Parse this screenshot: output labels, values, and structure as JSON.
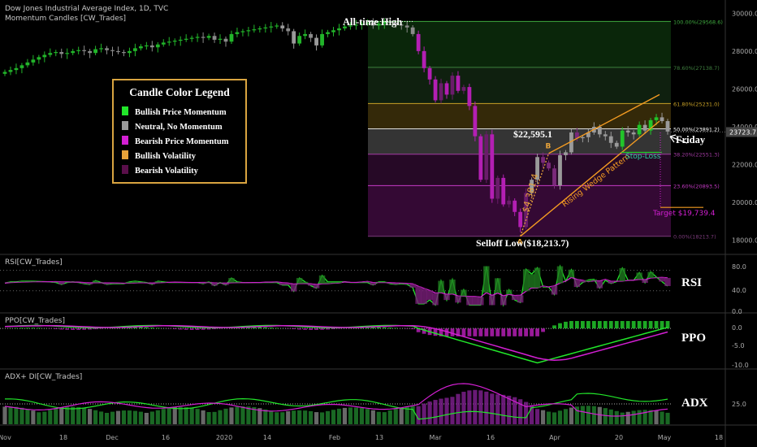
{
  "header": {
    "title": "Dow Jones Industrial Average Index, 1D, TVC",
    "indicator": "Momentum Candles [CW_Trades]"
  },
  "legend": {
    "title": "Candle Color Legend",
    "items": [
      {
        "label": "Bullish Price Momentum",
        "color": "#22e52a"
      },
      {
        "label": "Neutral, No Momentum",
        "color": "#9a9a9a"
      },
      {
        "label": "Bearish Price Momentum",
        "color": "#d31fd3"
      },
      {
        "label": "Bullish Volatility",
        "color": "#e8a33a"
      },
      {
        "label": "Bearish Volatility",
        "color": "#5a0f4a"
      }
    ]
  },
  "annotations": {
    "ath": "All-time High",
    "selloff": "Selloff Low($18,213.7)",
    "bounce_price": "$22,595.1",
    "point_a": "A",
    "point_b": "B",
    "move": "$4,381.4",
    "wedge": "Rising Wedge Pattern",
    "stop": "Stop-Loss",
    "target": "Target $19,739.4",
    "friday": "Friday"
  },
  "panels": {
    "rsi": {
      "header": "RSI[CW_Trades]",
      "label": "RSI",
      "ticks": [
        "80.0",
        "40.0",
        "0.0"
      ]
    },
    "ppo": {
      "header": "PPO[CW_Trades]",
      "label": "PPO",
      "ticks": [
        "0.0",
        "-5.0",
        "-10.0"
      ]
    },
    "adx": {
      "header": "ADX+ DI[CW_Trades]",
      "label": "ADX",
      "ticks": [
        "25.0"
      ]
    }
  },
  "chart_data": {
    "type": "candlestick",
    "title": "Dow Jones Industrial Average Index, 1D, TVC",
    "price_axis": {
      "ticks": [
        18000,
        20000,
        22000,
        24000,
        26000,
        28000,
        30000
      ],
      "range": [
        17300,
        30700
      ]
    },
    "current_price": "23723.7",
    "time_axis": {
      "labels": [
        "Nov",
        "18",
        "Dec",
        "16",
        "2020",
        "14",
        "Feb",
        "13",
        "Mar",
        "16",
        "Apr",
        "20",
        "May",
        "18"
      ]
    },
    "fibonacci": [
      {
        "label": "100.00%(29568.6)",
        "value": 29568.6,
        "color": "#3ea83e"
      },
      {
        "label": "78.60%(27138.7)",
        "value": 27138.7,
        "color": "#3f7f3f"
      },
      {
        "label": "61.80%(25231.0)",
        "value": 25231.0,
        "color": "#c9a227"
      },
      {
        "label": "50.00%(23891.2)",
        "value": 23891.2,
        "color": "#dddddd"
      },
      {
        "label": "38.20%(22551.3)",
        "value": 22551.3,
        "color": "#a13aa1"
      },
      {
        "label": "23.60%(20893.5)",
        "value": 20893.5,
        "color": "#c43ac4"
      },
      {
        "label": "0.00%(18213.7)",
        "value": 18213.7,
        "color": "#7a3a7a"
      }
    ],
    "series": [
      {
        "name": "close",
        "values": [
          26900,
          27000,
          27100,
          27250,
          27400,
          27550,
          27680,
          27800,
          27900,
          27950,
          27850,
          27900,
          28000,
          28050,
          28000,
          27900,
          28100,
          28150,
          28050,
          28000,
          27950,
          27900,
          28000,
          28150,
          28250,
          28300,
          28200,
          28350,
          28450,
          28500,
          28550,
          28600,
          28650,
          28700,
          28750,
          28700,
          28800,
          28600,
          28650,
          28500,
          28900,
          29000,
          29050,
          29100,
          29150,
          29200,
          29250,
          29300,
          29350,
          29200,
          29050,
          28400,
          28800,
          28900,
          28700,
          28300,
          28900,
          29000,
          29100,
          29200,
          29300,
          29350,
          29400,
          29450,
          29500,
          29350,
          29450,
          29550,
          29500,
          29400,
          29350,
          29250,
          28900,
          28000,
          27100,
          26500,
          25400,
          26300,
          25700,
          26700,
          25900,
          26100,
          25100,
          23500,
          21200,
          23600,
          20200,
          21300,
          19900,
          20100,
          19500,
          18700,
          20500,
          21200,
          22400,
          22100,
          21800,
          20900,
          22500,
          22650,
          23700,
          23400,
          23450,
          23700,
          24000,
          23600,
          23500,
          23150,
          22950,
          23800,
          23700,
          23600,
          24100,
          23800,
          24350,
          24500,
          24300,
          23750
        ]
      }
    ]
  }
}
